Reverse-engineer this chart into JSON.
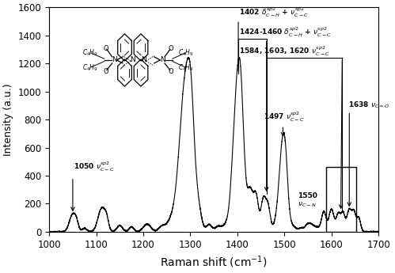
{
  "xlim": [
    1000,
    1700
  ],
  "ylim": [
    0,
    1600
  ],
  "xlabel": "Raman shift (cm$^{-1}$)",
  "ylabel": "Intensity (a.u.)",
  "xticks": [
    1000,
    1100,
    1200,
    1300,
    1400,
    1500,
    1600,
    1700
  ],
  "yticks": [
    0,
    200,
    400,
    600,
    800,
    1000,
    1200,
    1400,
    1600
  ],
  "line_color": "black",
  "background": "white",
  "rect_x1": 1588,
  "rect_x2": 1652,
  "rect_y1": 0,
  "rect_y2": 460
}
